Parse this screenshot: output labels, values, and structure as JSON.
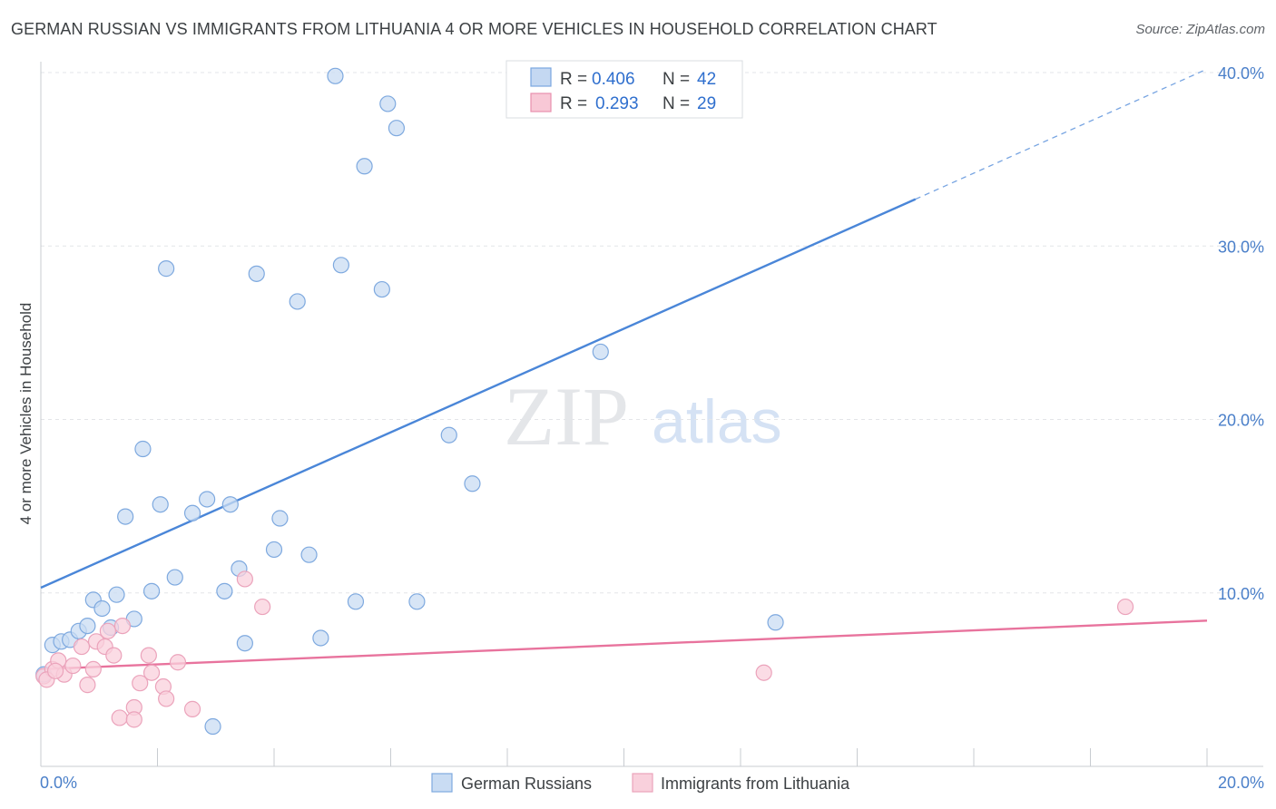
{
  "title": "GERMAN RUSSIAN VS IMMIGRANTS FROM LITHUANIA 4 OR MORE VEHICLES IN HOUSEHOLD CORRELATION CHART",
  "source": "Source: ZipAtlas.com",
  "watermark": {
    "zip": "ZIP",
    "atlas": "atlas"
  },
  "legend_top": {
    "r_label": "R =",
    "n_label": "N =",
    "rows": [
      {
        "series": "German Russians",
        "r": "0.406",
        "n": "42",
        "fill": "#c4d8f2",
        "stroke": "#7aa7e0"
      },
      {
        "series": "Immigrants from Lithuania",
        "r": "0.293",
        "n": "29",
        "fill": "#f8c8d6",
        "stroke": "#e890ad"
      }
    ]
  },
  "chart_data": {
    "type": "scatter",
    "title": "GERMAN RUSSIAN VS IMMIGRANTS FROM LITHUANIA 4 OR MORE VEHICLES IN HOUSEHOLD CORRELATION CHART",
    "xlabel": "",
    "ylabel": "4 or more Vehicles in Household",
    "xlim": [
      0,
      20
    ],
    "ylim": [
      0,
      40
    ],
    "x_tick_labels": [
      "0.0%",
      "20.0%"
    ],
    "y_tick_labels": [
      "10.0%",
      "20.0%",
      "30.0%",
      "40.0%"
    ],
    "y_ticks": [
      10,
      20,
      30,
      40
    ],
    "grid": true,
    "legend_position": "bottom",
    "series": [
      {
        "name": "German Russians",
        "color": "#4a86d8",
        "marker_fill": "#c9dcf3",
        "marker_stroke": "#7ea9df",
        "trend": {
          "x0": 0,
          "y0": 10.3,
          "x1": 15.0,
          "y1": 32.7,
          "dashed_to_x": 20,
          "dashed_to_y": 40.2
        },
        "points": [
          [
            0.2,
            7.0
          ],
          [
            0.35,
            7.2
          ],
          [
            0.5,
            7.3
          ],
          [
            0.65,
            7.8
          ],
          [
            0.8,
            8.1
          ],
          [
            0.9,
            9.6
          ],
          [
            1.05,
            9.1
          ],
          [
            1.2,
            8.0
          ],
          [
            1.3,
            9.9
          ],
          [
            1.45,
            14.4
          ],
          [
            1.6,
            8.5
          ],
          [
            1.75,
            18.3
          ],
          [
            1.9,
            10.1
          ],
          [
            2.05,
            15.1
          ],
          [
            2.15,
            28.7
          ],
          [
            2.3,
            10.9
          ],
          [
            2.6,
            14.6
          ],
          [
            2.85,
            15.4
          ],
          [
            2.95,
            2.3
          ],
          [
            3.15,
            10.1
          ],
          [
            3.25,
            15.1
          ],
          [
            3.4,
            11.4
          ],
          [
            3.5,
            7.1
          ],
          [
            3.7,
            28.4
          ],
          [
            4.0,
            12.5
          ],
          [
            4.1,
            14.3
          ],
          [
            4.4,
            26.8
          ],
          [
            4.6,
            12.2
          ],
          [
            4.8,
            7.4
          ],
          [
            5.05,
            39.8
          ],
          [
            5.15,
            28.9
          ],
          [
            5.4,
            9.5
          ],
          [
            5.55,
            34.6
          ],
          [
            5.85,
            27.5
          ],
          [
            5.95,
            38.2
          ],
          [
            6.1,
            36.8
          ],
          [
            6.45,
            9.5
          ],
          [
            7.0,
            19.1
          ],
          [
            7.4,
            16.3
          ],
          [
            9.6,
            23.9
          ],
          [
            12.6,
            8.3
          ],
          [
            0.05,
            5.3
          ]
        ]
      },
      {
        "name": "Immigrants from Lithuania",
        "color": "#e8739d",
        "marker_fill": "#f9d0dc",
        "marker_stroke": "#eba3bb",
        "trend": {
          "x0": 0,
          "y0": 5.6,
          "x1": 20,
          "y1": 8.4
        },
        "points": [
          [
            0.05,
            5.2
          ],
          [
            0.2,
            5.6
          ],
          [
            0.3,
            6.1
          ],
          [
            0.4,
            5.3
          ],
          [
            0.55,
            5.8
          ],
          [
            0.7,
            6.9
          ],
          [
            0.8,
            4.7
          ],
          [
            0.9,
            5.6
          ],
          [
            0.95,
            7.2
          ],
          [
            1.1,
            6.9
          ],
          [
            1.15,
            7.8
          ],
          [
            1.25,
            6.4
          ],
          [
            1.4,
            8.1
          ],
          [
            1.35,
            2.8
          ],
          [
            1.6,
            3.4
          ],
          [
            1.6,
            2.7
          ],
          [
            1.7,
            4.8
          ],
          [
            1.85,
            6.4
          ],
          [
            1.9,
            5.4
          ],
          [
            2.1,
            4.6
          ],
          [
            2.15,
            3.9
          ],
          [
            2.35,
            6.0
          ],
          [
            2.6,
            3.3
          ],
          [
            3.5,
            10.8
          ],
          [
            3.8,
            9.2
          ],
          [
            12.4,
            5.4
          ],
          [
            18.6,
            9.2
          ],
          [
            0.1,
            5.0
          ],
          [
            0.25,
            5.5
          ]
        ]
      }
    ]
  }
}
